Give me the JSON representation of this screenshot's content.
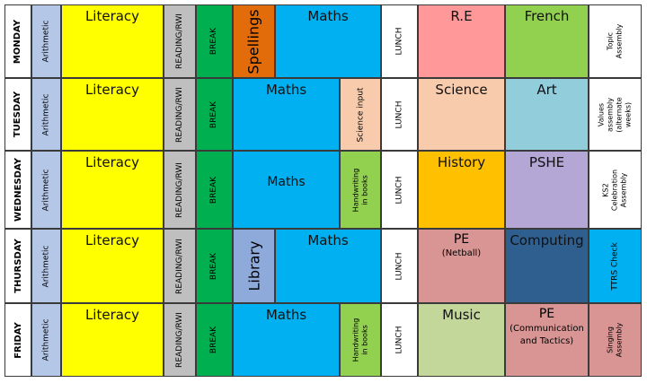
{
  "days": [
    "MONDAY",
    "TUESDAY",
    "WEDNESDAY",
    "THURSDAY",
    "FRIDAY"
  ],
  "arithmetic": "Arithmetic",
  "reading": "READING/RWI",
  "break": "BREAK",
  "lunch": "LUNCH",
  "literacy": "Literacy",
  "maths": "Maths",
  "monday": {
    "spellings": "Spellings",
    "re": "R.E",
    "french": "French",
    "assembly": "Topic Assembly"
  },
  "tuesday": {
    "science_input": "Science input",
    "science": "Science",
    "art": "Art",
    "assembly": "Values assembly (alternate weeks)"
  },
  "wednesday": {
    "handwriting": "Handwriting in books",
    "history": "History",
    "pshe": "PSHE",
    "assembly": "KS2 Celebration Assembly"
  },
  "thursday": {
    "library": "Library",
    "pe": "PE",
    "pe_note": "(Netball)",
    "computing": "Computing",
    "ttrs": "TTRS Check"
  },
  "friday": {
    "handwriting": "Handwriting in books",
    "music": "Music",
    "pe": "PE",
    "pe_note": "(Communication and Tactics)",
    "assembly": "Singing Assembly"
  },
  "colors": {
    "arithmetic": "#b4c7e7",
    "literacy": "#ffff00",
    "reading": "#bfbfbf",
    "break": "#00b050",
    "spellings": "#e36c0a",
    "maths": "#00b0f0",
    "re": "#ff9999",
    "french": "#92d050",
    "science_input": "#f8cbad",
    "science": "#f8cbad",
    "art": "#92cddc",
    "handwriting": "#92d050",
    "history": "#ffc000",
    "pshe": "#b4a7d6",
    "library": "#8eaadb",
    "pe_thursday": "#d99594",
    "computing": "#2f5f8f",
    "ttrs": "#00b0f0",
    "music": "#c4d79b",
    "pe_friday": "#d99594"
  }
}
